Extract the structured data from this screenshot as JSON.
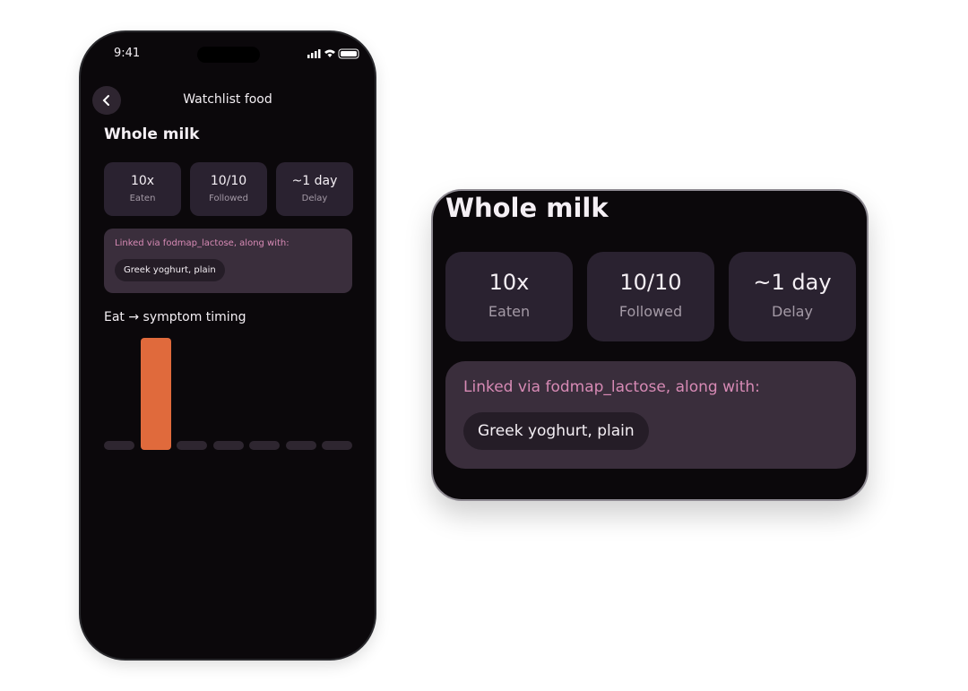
{
  "status_bar": {
    "time": "9:41"
  },
  "header": {
    "title": "Watchlist food"
  },
  "food": {
    "name": "Whole milk",
    "stats": [
      {
        "value": "10x",
        "label": "Eaten"
      },
      {
        "value": "10/10",
        "label": "Followed"
      },
      {
        "value": "~1 day",
        "label": "Delay"
      }
    ],
    "linked": {
      "text": "Linked via fodmap_lactose, along with:",
      "items": [
        "Greek yoghurt, plain"
      ]
    }
  },
  "chart_data": {
    "type": "bar",
    "title": "Eat → symptom timing",
    "values": [
      0,
      10,
      0,
      0,
      0,
      0,
      0
    ],
    "color": "#e06a3c",
    "empty_color": "#2e2630"
  }
}
